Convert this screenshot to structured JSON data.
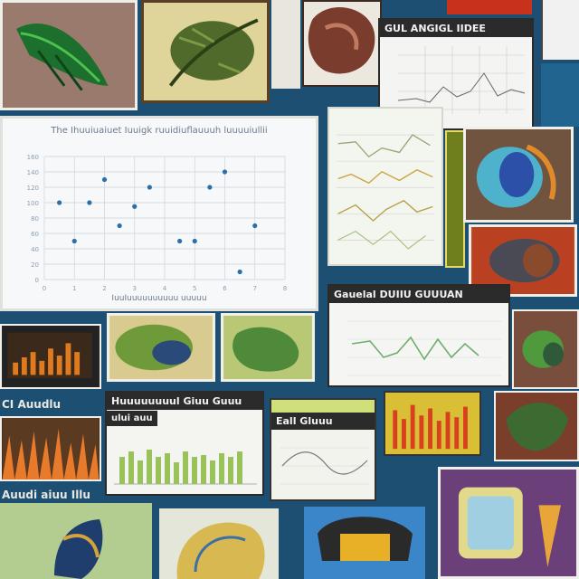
{
  "collage": {
    "background": "#1d4f73",
    "tiles": [
      {
        "name": "leaf-illustration-tile",
        "icon": "green-leaf"
      },
      {
        "name": "fern-illustration-tile",
        "icon": "green-fern"
      },
      {
        "name": "brown-organ-illustration-tile",
        "icon": "brown-organ"
      },
      {
        "name": "blue-plumage-illustration-tile",
        "icon": "blue-plumage"
      },
      {
        "name": "hedgehog-illustration-tile",
        "icon": "brown-hedgehog"
      },
      {
        "name": "green-bird-illustration-tile",
        "icon": "green-bird"
      },
      {
        "name": "green-map-illustration-tile",
        "icon": "green-map"
      },
      {
        "name": "orange-bar-panel-tile",
        "icon": "orange-bars"
      },
      {
        "name": "fire-spikes-panel-tile",
        "icon": "fire-spikes"
      },
      {
        "name": "yellow-red-bars-tile",
        "icon": "yellow-red-bars"
      },
      {
        "name": "green-blob-illustration-tile",
        "icon": "green-blob"
      },
      {
        "name": "blue-bird-illustration-tile",
        "icon": "blue-bird"
      },
      {
        "name": "yellow-shell-illustration-tile",
        "icon": "yellow-shell"
      },
      {
        "name": "dark-cap-illustration-tile",
        "icon": "dark-cap"
      },
      {
        "name": "yellow-cube-illustration-tile",
        "icon": "yellow-cube"
      }
    ]
  },
  "panels": {
    "top_chart_title": "GUL ANGIGL IIDEE",
    "mid_chart_title": "Gauelal DUIIU GUUUAN",
    "left_label": "CI Auudlu",
    "bottom_left_label": "Auudi aiuu Illu",
    "bar_panel_title": "Huuuuuuuul Giuu Guuu",
    "bar_panel_subtitle": "ului auu",
    "wave_panel_title": "Eall Gluuu"
  },
  "chart_data": {
    "type": "scatter",
    "title": "The Ihuuiuaiuet Iuuigk ruuidiuflauuuh luuuuiullii",
    "xlabel": "IuuIuuuuuuuuuu uuuuu",
    "ylabel": "",
    "x_ticks": [
      "0",
      "1",
      "2",
      "3",
      "4",
      "5",
      "6",
      "7",
      "8"
    ],
    "y_ticks": [
      "0",
      "20",
      "40",
      "60",
      "80",
      "100",
      "120",
      "140",
      "160"
    ],
    "xlim": [
      0,
      8
    ],
    "ylim": [
      0,
      160
    ],
    "grid": true,
    "marker_color": "#2f6fa8",
    "points": [
      {
        "x": 0.5,
        "y": 100
      },
      {
        "x": 1.0,
        "y": 50
      },
      {
        "x": 1.5,
        "y": 100
      },
      {
        "x": 2.0,
        "y": 130
      },
      {
        "x": 2.5,
        "y": 70
      },
      {
        "x": 3.0,
        "y": 95
      },
      {
        "x": 3.5,
        "y": 120
      },
      {
        "x": 4.5,
        "y": 50
      },
      {
        "x": 5.0,
        "y": 50
      },
      {
        "x": 5.5,
        "y": 120
      },
      {
        "x": 6.0,
        "y": 140
      },
      {
        "x": 6.5,
        "y": 10
      },
      {
        "x": 7.0,
        "y": 70
      }
    ]
  }
}
